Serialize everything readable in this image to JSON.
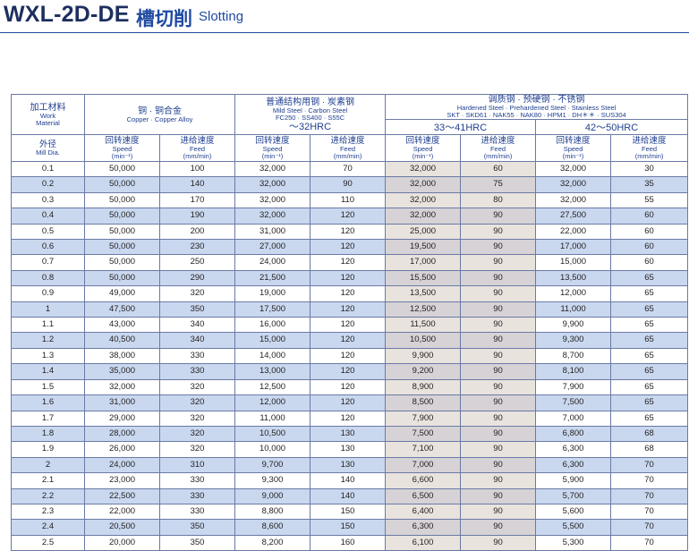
{
  "title": {
    "model": "WXL-2D-DE",
    "cn": "槽切削",
    "en": "Slotting"
  },
  "header": {
    "work_material": {
      "cn": "加工材料",
      "en1": "Work",
      "en2": "Material"
    },
    "copper": {
      "cn": "铜 · 铜合金",
      "en": "Copper · Copper Alloy"
    },
    "mild": {
      "cn": "普通结构用钢 · 炭素钢",
      "en1": "Mild Steel · Carbon Steel",
      "en2": "FC250 · SS400 · S55C",
      "hrc": "～32HRC"
    },
    "hardened": {
      "cn": "调质钢 · 预硬钢 · 不锈钢",
      "en1": "Hardened Steel · Prehardened Steel · Stainless Steel",
      "en2": "SKT · SKD61 · NAK55 · NAK80 · HPM1 · DH＊＊ · SUS304",
      "hrc1": "33～41HRC",
      "hrc2": "42～50HRC"
    },
    "mill_dia": {
      "cn": "外径",
      "en": "Mill Dia."
    },
    "speed": {
      "cn": "回转速度",
      "en1": "Speed",
      "en2": "(min⁻¹)"
    },
    "feed": {
      "cn": "进给速度",
      "en1": "Feed",
      "en2": "(mm/min)"
    }
  },
  "rows": [
    [
      "0.1",
      "50,000",
      "100",
      "32,000",
      "70",
      "32,000",
      "60",
      "32,000",
      "30"
    ],
    [
      "0.2",
      "50,000",
      "140",
      "32,000",
      "90",
      "32,000",
      "75",
      "32,000",
      "35"
    ],
    [
      "0.3",
      "50,000",
      "170",
      "32,000",
      "110",
      "32,000",
      "80",
      "32,000",
      "55"
    ],
    [
      "0.4",
      "50,000",
      "190",
      "32,000",
      "120",
      "32,000",
      "90",
      "27,500",
      "60"
    ],
    [
      "0.5",
      "50,000",
      "200",
      "31,000",
      "120",
      "25,000",
      "90",
      "22,000",
      "60"
    ],
    [
      "0.6",
      "50,000",
      "230",
      "27,000",
      "120",
      "19,500",
      "90",
      "17,000",
      "60"
    ],
    [
      "0.7",
      "50,000",
      "250",
      "24,000",
      "120",
      "17,000",
      "90",
      "15,000",
      "60"
    ],
    [
      "0.8",
      "50,000",
      "290",
      "21,500",
      "120",
      "15,500",
      "90",
      "13,500",
      "65"
    ],
    [
      "0.9",
      "49,000",
      "320",
      "19,000",
      "120",
      "13,500",
      "90",
      "12,000",
      "65"
    ],
    [
      "1",
      "47,500",
      "350",
      "17,500",
      "120",
      "12,500",
      "90",
      "11,000",
      "65"
    ],
    [
      "1.1",
      "43,000",
      "340",
      "16,000",
      "120",
      "11,500",
      "90",
      "9,900",
      "65"
    ],
    [
      "1.2",
      "40,500",
      "340",
      "15,000",
      "120",
      "10,500",
      "90",
      "9,300",
      "65"
    ],
    [
      "1.3",
      "38,000",
      "330",
      "14,000",
      "120",
      "9,900",
      "90",
      "8,700",
      "65"
    ],
    [
      "1.4",
      "35,000",
      "330",
      "13,000",
      "120",
      "9,200",
      "90",
      "8,100",
      "65"
    ],
    [
      "1.5",
      "32,000",
      "320",
      "12,500",
      "120",
      "8,900",
      "90",
      "7,900",
      "65"
    ],
    [
      "1.6",
      "31,000",
      "320",
      "12,000",
      "120",
      "8,500",
      "90",
      "7,500",
      "65"
    ],
    [
      "1.7",
      "29,000",
      "320",
      "11,000",
      "120",
      "7,900",
      "90",
      "7,000",
      "65"
    ],
    [
      "1.8",
      "28,000",
      "320",
      "10,500",
      "130",
      "7,500",
      "90",
      "6,800",
      "68"
    ],
    [
      "1.9",
      "26,000",
      "320",
      "10,000",
      "130",
      "7,100",
      "90",
      "6,300",
      "68"
    ],
    [
      "2",
      "24,000",
      "310",
      "9,700",
      "130",
      "7,000",
      "90",
      "6,300",
      "70"
    ],
    [
      "2.1",
      "23,000",
      "330",
      "9,300",
      "140",
      "6,600",
      "90",
      "5,900",
      "70"
    ],
    [
      "2.2",
      "22,500",
      "330",
      "9,000",
      "140",
      "6,500",
      "90",
      "5,700",
      "70"
    ],
    [
      "2.3",
      "22,000",
      "330",
      "8,800",
      "150",
      "6,400",
      "90",
      "5,600",
      "70"
    ],
    [
      "2.4",
      "20,500",
      "350",
      "8,600",
      "150",
      "6,300",
      "90",
      "5,500",
      "70"
    ],
    [
      "2.5",
      "20,000",
      "350",
      "8,200",
      "160",
      "6,100",
      "90",
      "5,300",
      "70"
    ]
  ]
}
